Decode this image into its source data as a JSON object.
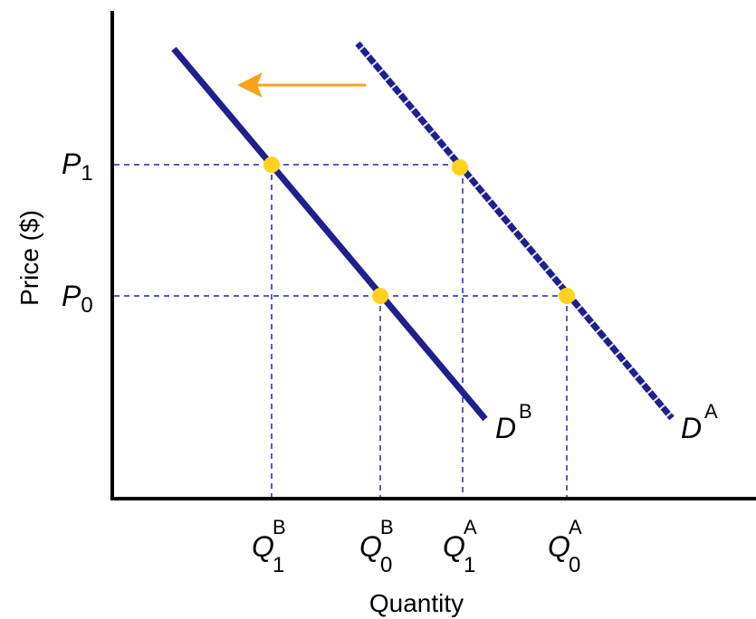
{
  "axes": {
    "y_label": "Price ($)",
    "x_label": "Quantity"
  },
  "price_labels": [
    {
      "main": "P",
      "sub": "1"
    },
    {
      "main": "P",
      "sub": "0"
    }
  ],
  "quantity_labels": [
    {
      "main": "Q",
      "sub": "1",
      "sup": "B"
    },
    {
      "main": "Q",
      "sub": "0",
      "sup": "B"
    },
    {
      "main": "Q",
      "sub": "1",
      "sup": "A"
    },
    {
      "main": "Q",
      "sub": "0",
      "sup": "A"
    }
  ],
  "curves": [
    {
      "main": "D",
      "sup": "B",
      "style": "solid"
    },
    {
      "main": "D",
      "sup": "A",
      "style": "dashed"
    }
  ],
  "shift_arrow": {
    "direction": "left"
  },
  "colors": {
    "curve": "#1f1f8f",
    "guide": "#2323b4",
    "point": "#ffd21f",
    "arrow": "#f7a21b",
    "axis": "#000000"
  }
}
